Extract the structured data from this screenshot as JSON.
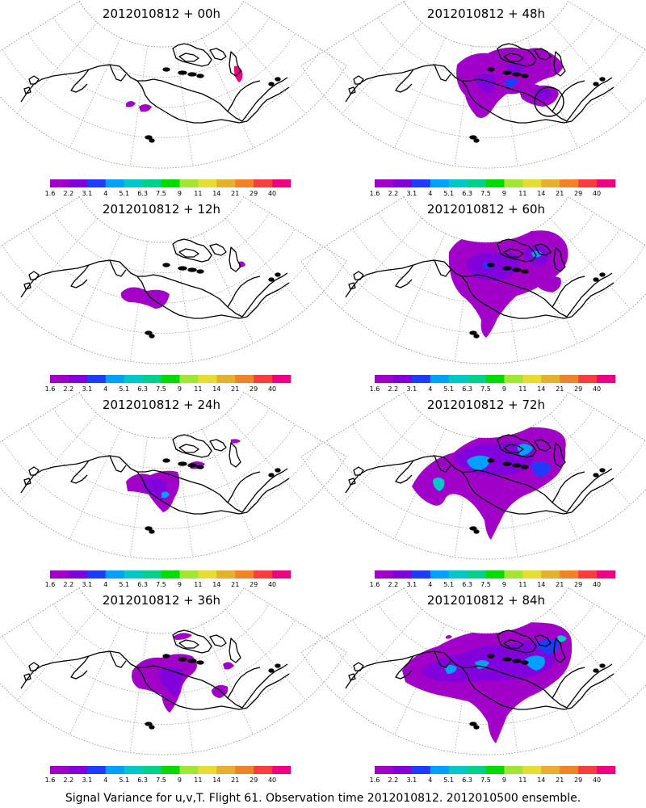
{
  "figure": {
    "caption": "Signal Variance for u,v,T. Flight 61. Observation time 2012010812. 2012010500 ensemble."
  },
  "colorbar": {
    "labels": [
      "1.6",
      "2.2",
      "3.1",
      "4",
      "5.1",
      "6.3",
      "7.5",
      "9",
      "11",
      "14",
      "21",
      "29",
      "40"
    ],
    "colors": [
      "#a000c8",
      "#8200dc",
      "#1e3cff",
      "#00a0ff",
      "#00c8c8",
      "#00d28c",
      "#00dc00",
      "#a0e632",
      "#e6dc32",
      "#e6af2d",
      "#f08228",
      "#fa3c3c",
      "#f00082"
    ]
  },
  "panels": [
    {
      "title": "2012010812 + 00h",
      "lead_hours": 0,
      "circle_marker": false
    },
    {
      "title": "2012010812 + 48h",
      "lead_hours": 48,
      "circle_marker": true
    },
    {
      "title": "2012010812 + 12h",
      "lead_hours": 12,
      "circle_marker": false
    },
    {
      "title": "2012010812 + 60h",
      "lead_hours": 60,
      "circle_marker": false
    },
    {
      "title": "2012010812 + 24h",
      "lead_hours": 24,
      "circle_marker": false
    },
    {
      "title": "2012010812 + 72h",
      "lead_hours": 72,
      "circle_marker": false
    },
    {
      "title": "2012010812 + 36h",
      "lead_hours": 36,
      "circle_marker": false
    },
    {
      "title": "2012010812 + 84h",
      "lead_hours": 84,
      "circle_marker": false
    }
  ]
}
